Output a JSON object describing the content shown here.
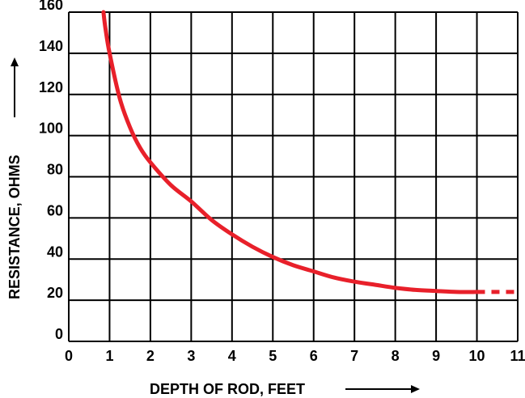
{
  "chart_data": {
    "type": "line",
    "title": "",
    "xlabel": "DEPTH OF ROD, FEET",
    "ylabel": "RESISTANCE, OHMS",
    "xlim": [
      0,
      11
    ],
    "ylim": [
      0,
      160
    ],
    "x_ticks": [
      "0",
      "1",
      "2",
      "3",
      "4",
      "5",
      "6",
      "7",
      "8",
      "9",
      "10",
      "11"
    ],
    "y_ticks": [
      "0",
      "20",
      "40",
      "60",
      "80",
      "100",
      "120",
      "140",
      "160"
    ],
    "grid": true,
    "series": [
      {
        "color": "#e8202a",
        "style": "solid",
        "x": [
          0.85,
          0.9,
          1.0,
          1.25,
          1.5,
          1.75,
          2.0,
          2.5,
          3.0,
          3.5,
          4.0,
          4.5,
          5.0,
          5.5,
          6.0,
          6.5,
          7.0,
          7.5,
          8.0,
          8.5,
          9.0,
          9.5,
          10.0
        ],
        "y": [
          160,
          152,
          140,
          118,
          104,
          94,
          87,
          76,
          68,
          59,
          52,
          46,
          41,
          37,
          34,
          31,
          29,
          27.5,
          26,
          25,
          24.5,
          24,
          24
        ]
      },
      {
        "color": "#e8202a",
        "style": "dashed",
        "x": [
          10.0,
          11.0
        ],
        "y": [
          24,
          24
        ]
      }
    ]
  }
}
